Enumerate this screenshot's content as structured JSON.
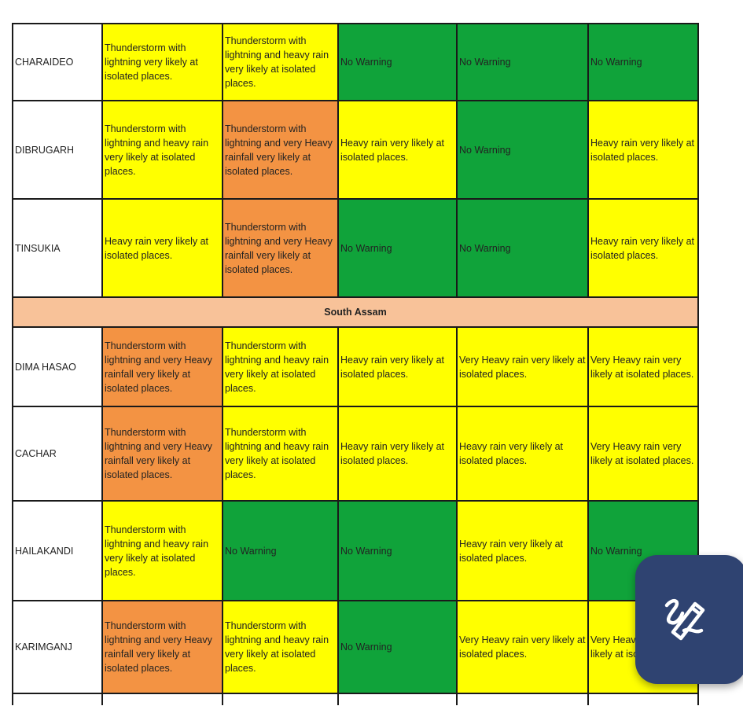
{
  "colors": {
    "yellow": "#ffff00",
    "orange": "#f39343",
    "green": "#10a33a",
    "region_band": "#f8c299",
    "fab_background": "#2f4371"
  },
  "table": {
    "rows": [
      {
        "district": "CHARAIDEO",
        "cells": [
          {
            "level": "yellow",
            "text": "Thunderstorm with lightning  very likely at isolated places."
          },
          {
            "level": "yellow",
            "text": "Thunderstorm with lightning  and heavy rain very likely at isolated places."
          },
          {
            "level": "green",
            "text": "No Warning"
          },
          {
            "level": "green",
            "text": "No Warning"
          },
          {
            "level": "green",
            "text": "No Warning"
          }
        ]
      },
      {
        "district": "DIBRUGARH",
        "cells": [
          {
            "level": "yellow",
            "text": "Thunderstorm with lightning  and heavy rain very likely at isolated places."
          },
          {
            "level": "orange",
            "text": "Thunderstorm with lightning and very Heavy  rainfall  very likely at isolated places."
          },
          {
            "level": "yellow",
            "text": "Heavy rain very likely at isolated places."
          },
          {
            "level": "green",
            "text": "No Warning"
          },
          {
            "level": "yellow",
            "text": "Heavy rain very likely at isolated places."
          }
        ]
      },
      {
        "district": "TINSUKIA",
        "cells": [
          {
            "level": "yellow",
            "text": "Heavy rain very likely at isolated places."
          },
          {
            "level": "orange",
            "text": "Thunderstorm with lightning and very Heavy  rainfall  very likely at isolated places."
          },
          {
            "level": "green",
            "text": "No Warning"
          },
          {
            "level": "green",
            "text": "No Warning"
          },
          {
            "level": "yellow",
            "text": "Heavy rain very likely at isolated places."
          }
        ]
      },
      {
        "region": "South Assam"
      },
      {
        "district": "DIMA HASAO",
        "cells": [
          {
            "level": "orange",
            "text": "Thunderstorm with lightning and very Heavy rainfall  very likely at isolated places."
          },
          {
            "level": "yellow",
            "text": "Thunderstorm with lightning  and heavy rain very likely at isolated places."
          },
          {
            "level": "yellow",
            "text": "Heavy rain very likely at isolated places."
          },
          {
            "level": "yellow",
            "text": "Very Heavy rain very likely at isolated places."
          },
          {
            "level": "yellow",
            "text": "Very Heavy rain very likely at isolated places."
          }
        ]
      },
      {
        "district": "CACHAR",
        "cells": [
          {
            "level": "orange",
            "text": "Thunderstorm with lightning and very Heavy rainfall  very likely at isolated places."
          },
          {
            "level": "yellow",
            "text": "Thunderstorm with lightning  and heavy rain very likely at isolated places."
          },
          {
            "level": "yellow",
            "text": "Heavy rain very likely at isolated places."
          },
          {
            "level": "yellow",
            "text": "Heavy rain very likely at isolated places."
          },
          {
            "level": "yellow",
            "text": "Very Heavy rain very likely at isolated places."
          }
        ]
      },
      {
        "district": "HAILAKANDI",
        "cells": [
          {
            "level": "yellow",
            "text": "Thunderstorm with lightning  and heavy rain very likely at isolated places."
          },
          {
            "level": "green",
            "text": "No Warning"
          },
          {
            "level": "green",
            "text": "No Warning"
          },
          {
            "level": "yellow",
            "text": "Heavy rain very likely at isolated places."
          },
          {
            "level": "green",
            "text": "No Warning"
          }
        ]
      },
      {
        "district": "KARIMGANJ",
        "cells": [
          {
            "level": "orange",
            "text": "Thunderstorm with lightning and very Heavy rainfall  very likely at isolated places."
          },
          {
            "level": "yellow",
            "text": "Thunderstorm with lightning  and heavy rain very likely at isolated places."
          },
          {
            "level": "green",
            "text": "No Warning"
          },
          {
            "level": "yellow",
            "text": "Very Heavy rain very likely at isolated places."
          },
          {
            "level": "yellow",
            "text": "Very Heavy rain very likely at isolated places."
          }
        ]
      }
    ]
  },
  "floating_button": {
    "icon": "annotate-pen-icon"
  }
}
